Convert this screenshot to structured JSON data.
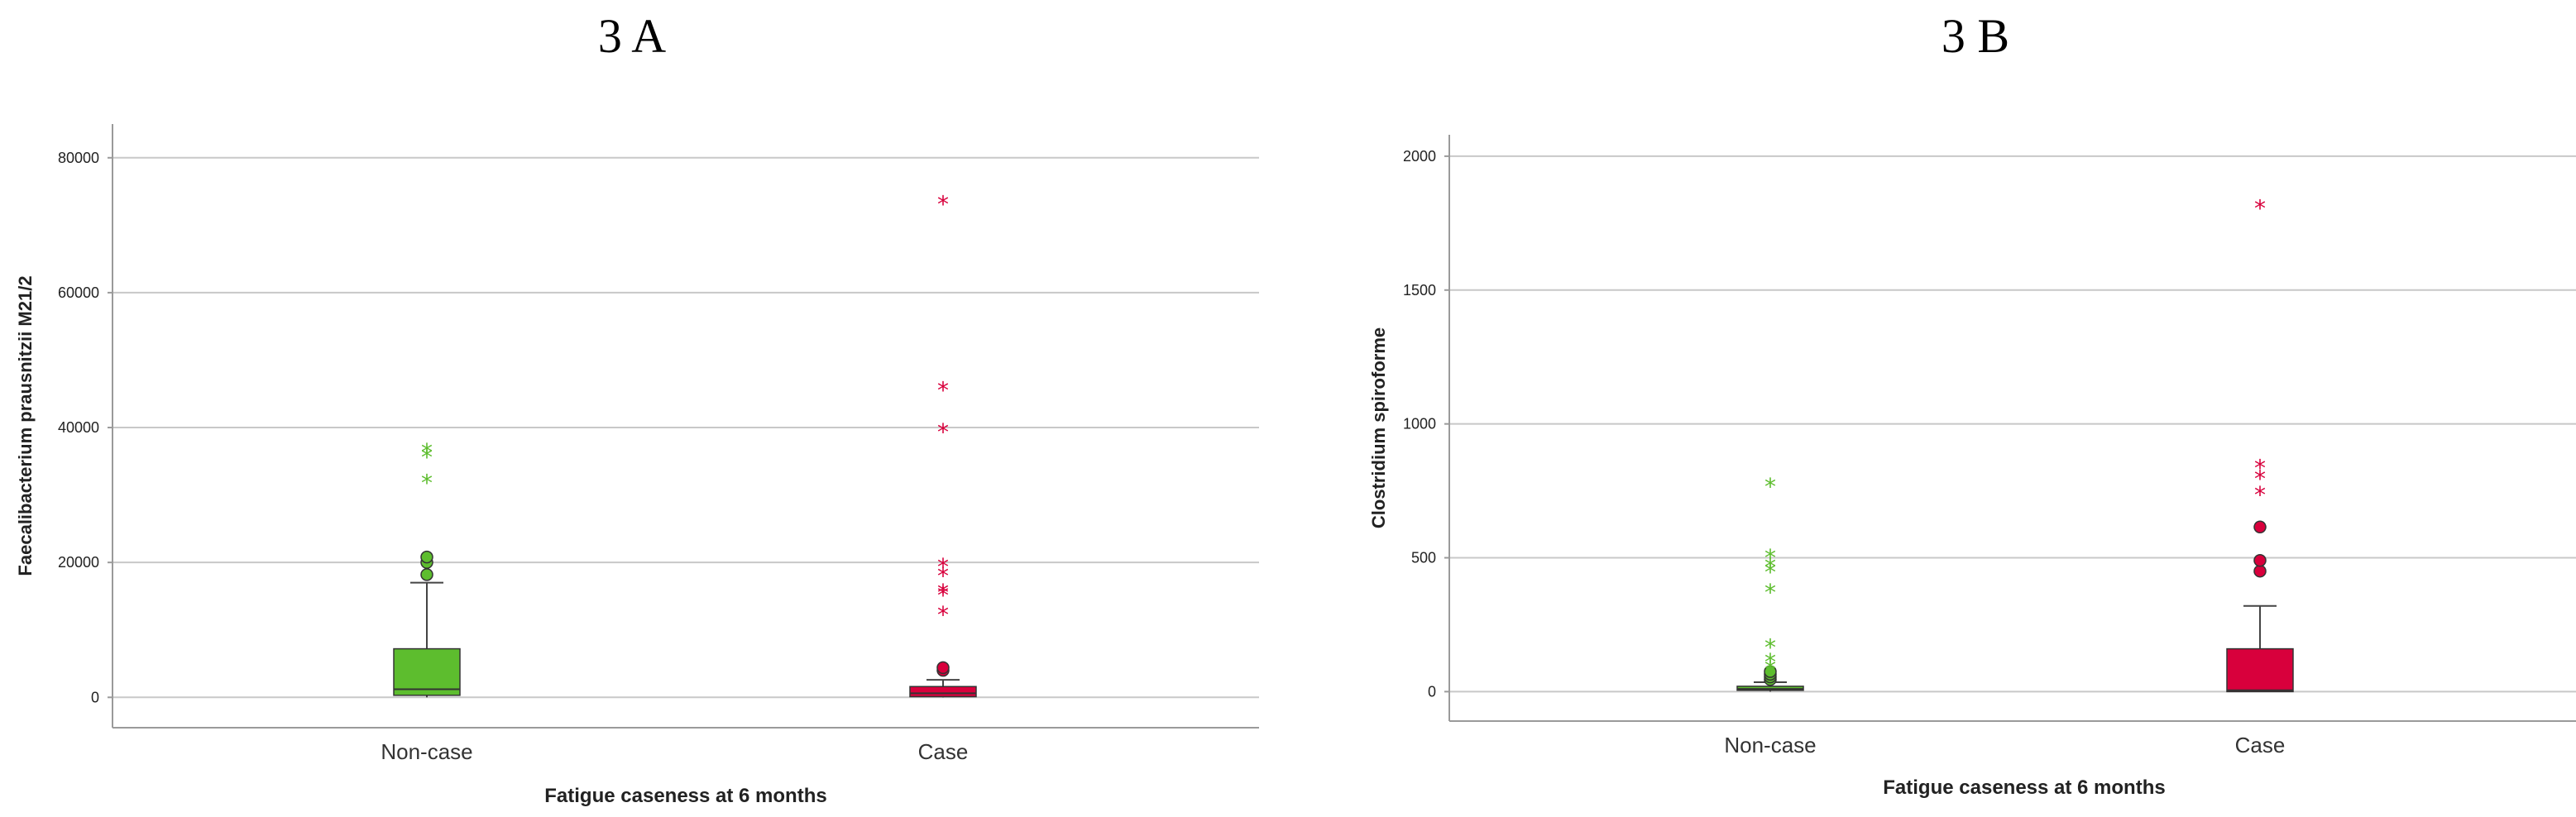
{
  "panels": [
    {
      "title": "3 A"
    },
    {
      "title": "3 B"
    }
  ],
  "colors": {
    "non_case": "#5dbd2e",
    "case": "#d8003c",
    "grid": "#c8c8c8",
    "axis": "#9a9a9a"
  },
  "chart_data": [
    {
      "type": "box",
      "title": "3 A",
      "xlabel": "Fatigue caseness at 6 months",
      "ylabel": "Faecalibacterium prausnitzii M21/2",
      "ylim": [
        -4500,
        85000
      ],
      "yticks": [
        0,
        20000,
        40000,
        60000,
        80000
      ],
      "ytick_labels": [
        "0",
        "20000",
        "40000",
        "60000",
        "80000"
      ],
      "grid": true,
      "categories": [
        "Non-case",
        "Case"
      ],
      "boxes": [
        {
          "category": "Non-case",
          "min": 0,
          "q1": 300,
          "median": 1200,
          "q3": 7200,
          "max": 17000,
          "outliers": [
            18200,
            20000,
            20800
          ],
          "extremes": [
            32000,
            35800,
            36600
          ],
          "color": "#5dbd2e"
        },
        {
          "category": "Case",
          "min": 0,
          "q1": 100,
          "median": 600,
          "q3": 1600,
          "max": 2600,
          "outliers": [
            4000,
            4400
          ],
          "extremes": [
            12400,
            15300,
            15700,
            18200,
            19500,
            39500,
            45700,
            73300
          ],
          "color": "#d8003c"
        }
      ]
    },
    {
      "type": "box",
      "title": "3 B",
      "xlabel": "Fatigue caseness at 6 months",
      "ylabel": "Clostridium spiroforme",
      "ylim": [
        -110,
        2080
      ],
      "yticks": [
        0,
        500,
        1000,
        1500,
        2000
      ],
      "ytick_labels": [
        "0",
        "500",
        "1000",
        "1500",
        "2000"
      ],
      "grid": true,
      "categories": [
        "Non-case",
        "Case"
      ],
      "boxes": [
        {
          "category": "Non-case",
          "min": 0,
          "q1": 5,
          "median": 10,
          "q3": 20,
          "max": 35,
          "outliers": [
            45,
            55,
            65,
            75
          ],
          "extremes": [
            90,
            115,
            170,
            375,
            450,
            470,
            505,
            770
          ],
          "color": "#5dbd2e"
        },
        {
          "category": "Case",
          "min": 0,
          "q1": 0,
          "median": 5,
          "q3": 160,
          "max": 320,
          "outliers": [
            450,
            490,
            615
          ],
          "extremes": [
            740,
            800,
            840,
            1810
          ],
          "color": "#d8003c"
        }
      ]
    }
  ]
}
